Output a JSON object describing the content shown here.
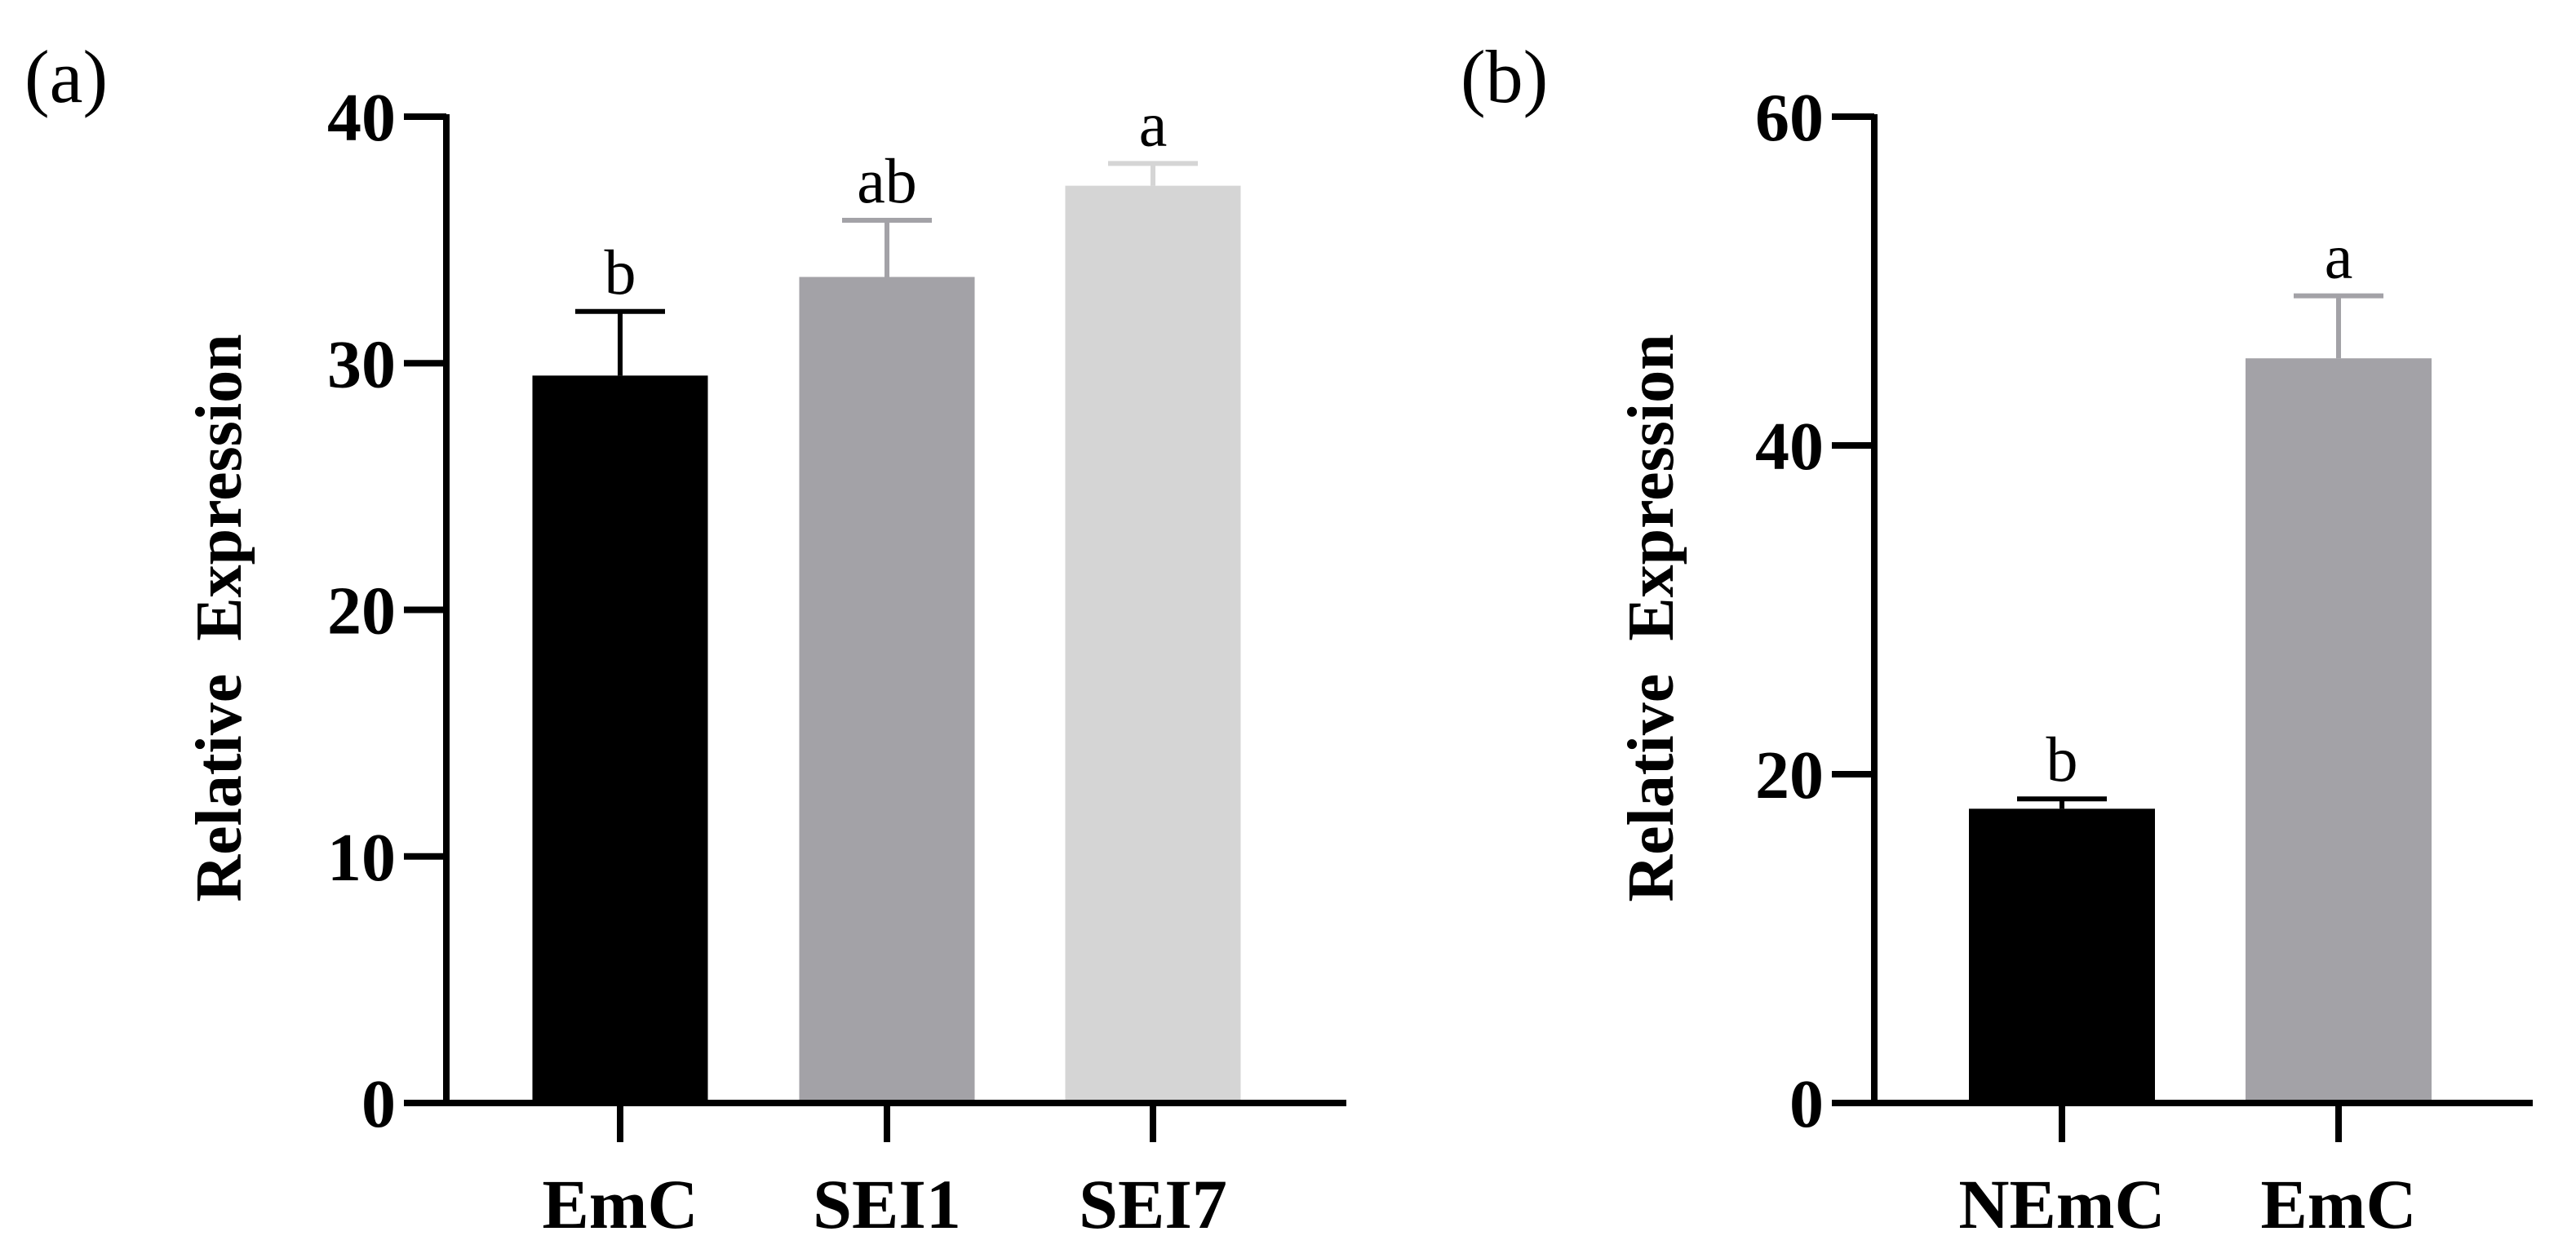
{
  "chart_data": [
    {
      "panel": "(a)",
      "type": "bar",
      "ylabel": "Relative  Expression",
      "ylim": [
        0,
        40
      ],
      "yticks": [
        0,
        10,
        20,
        30,
        40
      ],
      "categories": [
        "EmC",
        "SEI1",
        "SEI7"
      ],
      "values": [
        29.5,
        33.5,
        37.2
      ],
      "errors": [
        2.6,
        2.3,
        0.9
      ],
      "significance": [
        "b",
        "ab",
        "a"
      ],
      "colors": [
        "#000000",
        "#a3a2a7",
        "#d5d5d5"
      ]
    },
    {
      "panel": "(b)",
      "type": "bar",
      "ylabel": "Relative  Expression",
      "ylim": [
        0,
        60
      ],
      "yticks": [
        0,
        20,
        40,
        60
      ],
      "categories": [
        "NEmC",
        "EmC"
      ],
      "values": [
        17.9,
        45.3
      ],
      "errors": [
        0.6,
        3.8
      ],
      "significance": [
        "b",
        "a"
      ],
      "colors": [
        "#000000",
        "#a3a2a7"
      ]
    }
  ]
}
